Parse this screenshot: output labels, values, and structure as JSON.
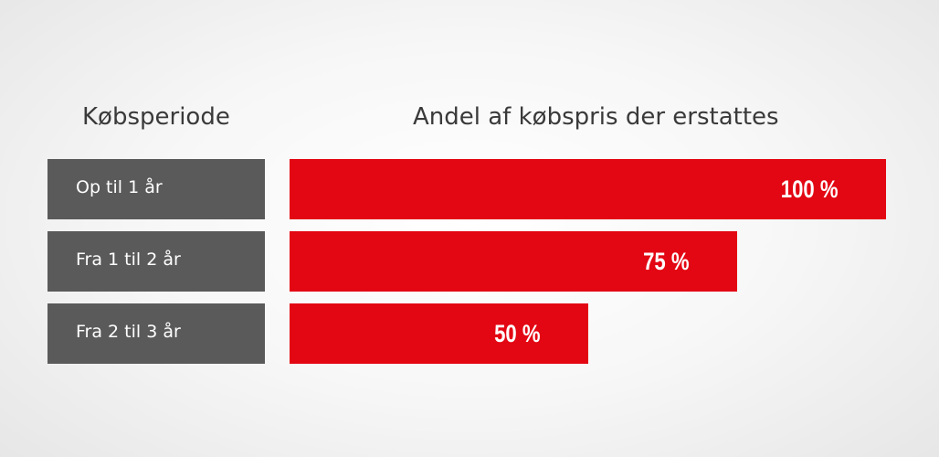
{
  "chart_data": {
    "type": "bar",
    "orientation": "horizontal",
    "category_header": "Købsperiode",
    "value_header": "Andel af købspris der erstattes",
    "categories": [
      "Op til 1 år",
      "Fra 1 til 2 år",
      "Fra 2 til 3 år"
    ],
    "values": [
      100,
      75,
      50
    ],
    "value_labels": [
      "100 %",
      "75 %",
      "50 %"
    ],
    "unit": "%",
    "xlim": [
      0,
      100
    ],
    "grid": false,
    "legend": "none",
    "colors": {
      "bar": "#e30613",
      "label_box": "#5a5a5a",
      "label_text": "#ffffff",
      "header_text": "#3a3a3a"
    }
  }
}
